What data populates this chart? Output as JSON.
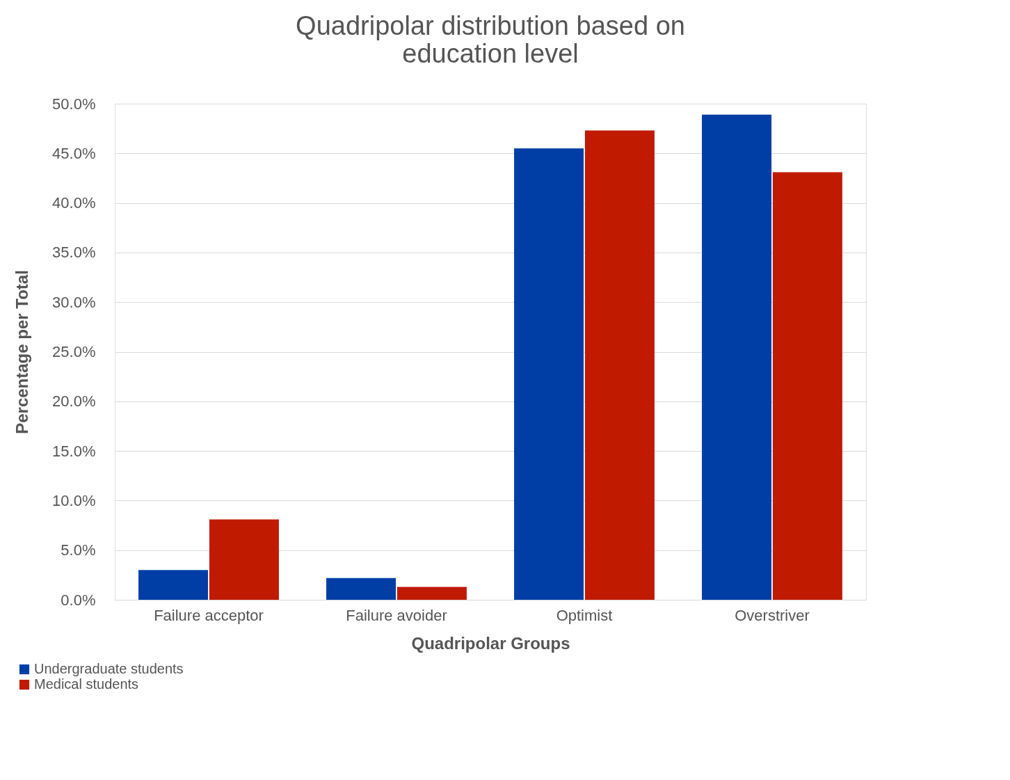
{
  "chart_data": {
    "type": "bar",
    "title": "Quadripolar distribution based on education level",
    "xlabel": "Quadripolar Groups",
    "ylabel": "Percentage per Total",
    "categories": [
      "Failure acceptor",
      "Failure avoider",
      "Optimist",
      "Overstriver"
    ],
    "series": [
      {
        "name": "Undergraduate students",
        "color": "#003ea6",
        "values": [
          3.0,
          2.2,
          45.5,
          48.9
        ]
      },
      {
        "name": "Medical students",
        "color": "#c01a00",
        "values": [
          8.1,
          1.3,
          47.3,
          43.1
        ]
      }
    ],
    "ylim": [
      0,
      50
    ],
    "yticks": [
      {
        "value": 0,
        "label": "0.0%"
      },
      {
        "value": 5,
        "label": "5.0%"
      },
      {
        "value": 10,
        "label": "10.0%"
      },
      {
        "value": 15,
        "label": "15.0%"
      },
      {
        "value": 20,
        "label": "20.0%"
      },
      {
        "value": 25,
        "label": "25.0%"
      },
      {
        "value": 30,
        "label": "30.0%"
      },
      {
        "value": 35,
        "label": "35.0%"
      },
      {
        "value": 40,
        "label": "40.0%"
      },
      {
        "value": 45,
        "label": "45.0%"
      },
      {
        "value": 50,
        "label": "50.0%"
      }
    ],
    "grid": "y",
    "legend": "bottom left"
  }
}
